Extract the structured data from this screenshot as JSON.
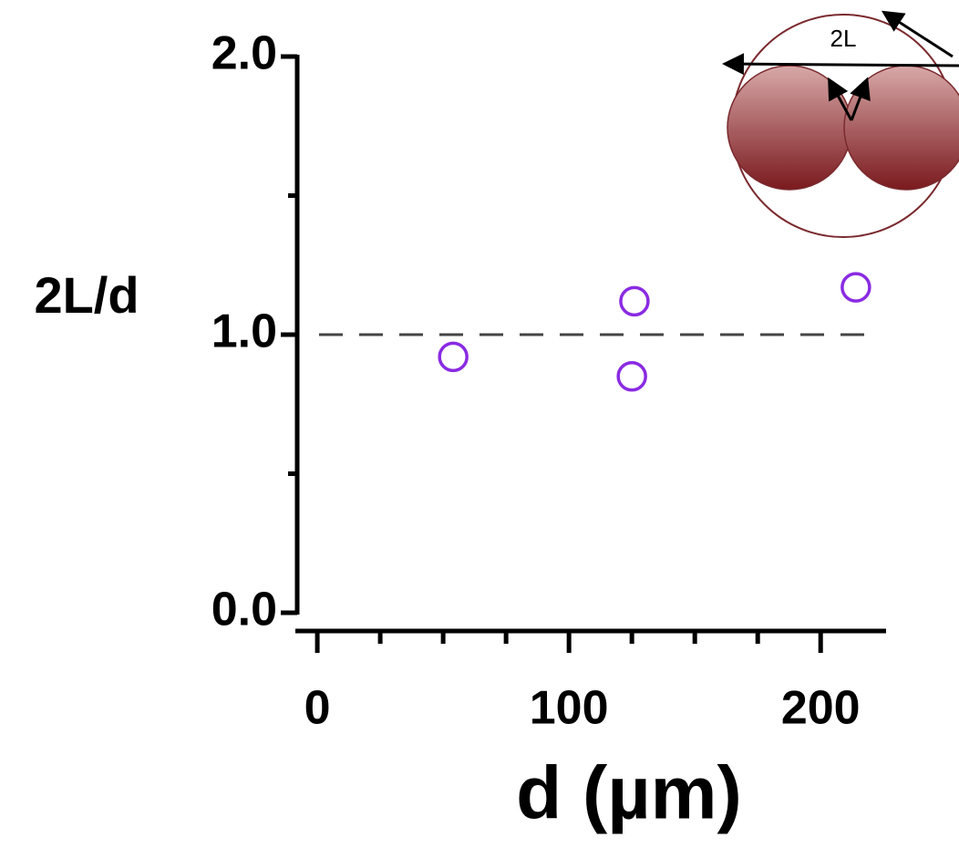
{
  "chart_data": {
    "type": "scatter",
    "x_label": "d (µm)",
    "y_label": "2L/d",
    "annotation": "2L",
    "x": [
      54,
      126,
      125,
      214
    ],
    "series": [
      {
        "color": "#8a2be2",
        "values": [
          0.92,
          1.12,
          0.85,
          1.17
        ]
      }
    ],
    "xlim": [
      -8,
      226
    ],
    "xticks": [
      0,
      100,
      200
    ],
    "xminor": [
      25,
      50,
      75,
      125,
      150,
      175
    ],
    "ylim": [
      0,
      2
    ],
    "yticks": [
      {
        "value": 0,
        "label": "0.0"
      },
      {
        "value": 1,
        "label": "1.0"
      },
      {
        "value": 2,
        "label": "2.0"
      }
    ],
    "yminor": [
      0.5,
      1.5
    ],
    "hline": 1
  }
}
